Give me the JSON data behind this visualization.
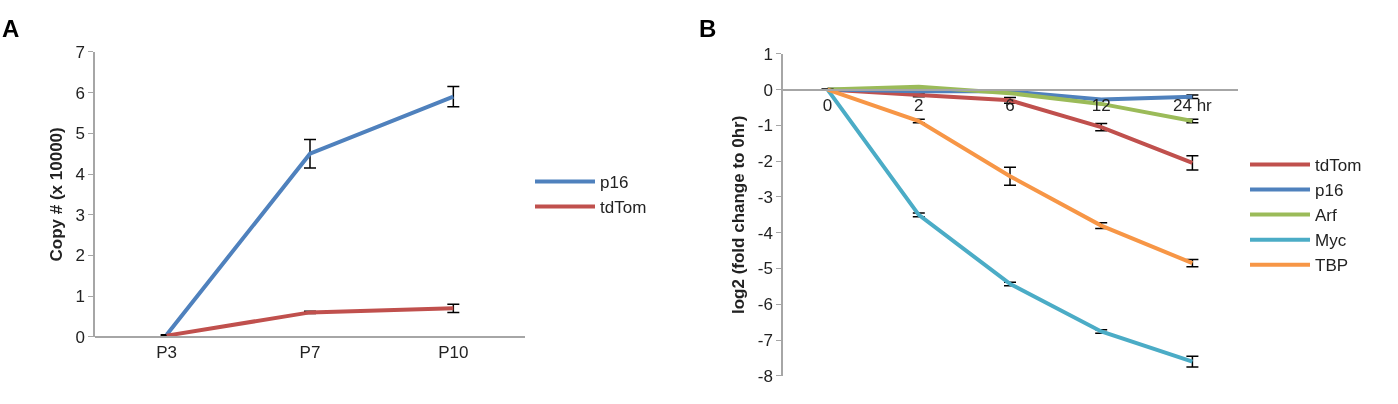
{
  "chart_data": [
    {
      "type": "line",
      "title": "A",
      "ylabel": "Copy # (x 10000)",
      "categories": [
        "P3",
        "P7",
        "P10"
      ],
      "ylim": [
        0,
        7
      ],
      "yticks": [
        0,
        1,
        2,
        3,
        4,
        5,
        6,
        7
      ],
      "legend": "right",
      "marker": "none",
      "line_style": "solid",
      "series": [
        {
          "name": "p16",
          "color": "#4f81bd",
          "values": [
            0.05,
            4.5,
            5.9
          ],
          "errors": [
            null,
            0.35,
            0.25
          ]
        },
        {
          "name": "tdTom",
          "color": "#c0504d",
          "values": [
            0.03,
            0.6,
            0.7
          ],
          "errors": [
            null,
            0.03,
            0.1
          ]
        }
      ]
    },
    {
      "type": "line",
      "title": "B",
      "ylabel": "log2 (fold change to 0hr)",
      "categories": [
        "0",
        "2",
        "6",
        "12",
        "24 hr"
      ],
      "ylim": [
        -8,
        1
      ],
      "yticks": [
        -8,
        -7,
        -6,
        -5,
        -4,
        -3,
        -2,
        -1,
        0,
        1
      ],
      "legend": "right",
      "marker": "none",
      "line_style": "solid",
      "series": [
        {
          "name": "tdTom",
          "color": "#c0504d",
          "values": [
            0,
            -0.15,
            -0.3,
            -1.05,
            -2.05
          ],
          "errors": [
            null,
            0.05,
            0.08,
            0.1,
            0.2
          ]
        },
        {
          "name": "p16",
          "color": "#4f81bd",
          "values": [
            0,
            -0.05,
            -0.05,
            -0.28,
            -0.2
          ],
          "errors": [
            null,
            null,
            null,
            null,
            0.05
          ]
        },
        {
          "name": "Arf",
          "color": "#9bbb59",
          "values": [
            0,
            0.08,
            -0.1,
            -0.4,
            -0.88
          ],
          "errors": [
            null,
            null,
            null,
            null,
            0.05
          ]
        },
        {
          "name": "Myc",
          "color": "#4bacc6",
          "values": [
            0,
            -3.5,
            -5.43,
            -6.76,
            -7.6
          ],
          "errors": [
            null,
            0.05,
            0.05,
            0.05,
            0.15
          ]
        },
        {
          "name": "TBP",
          "color": "#f79646",
          "values": [
            0,
            -0.88,
            -2.42,
            -3.8,
            -4.85
          ],
          "errors": [
            null,
            0.05,
            0.25,
            0.08,
            0.1
          ]
        }
      ]
    }
  ]
}
